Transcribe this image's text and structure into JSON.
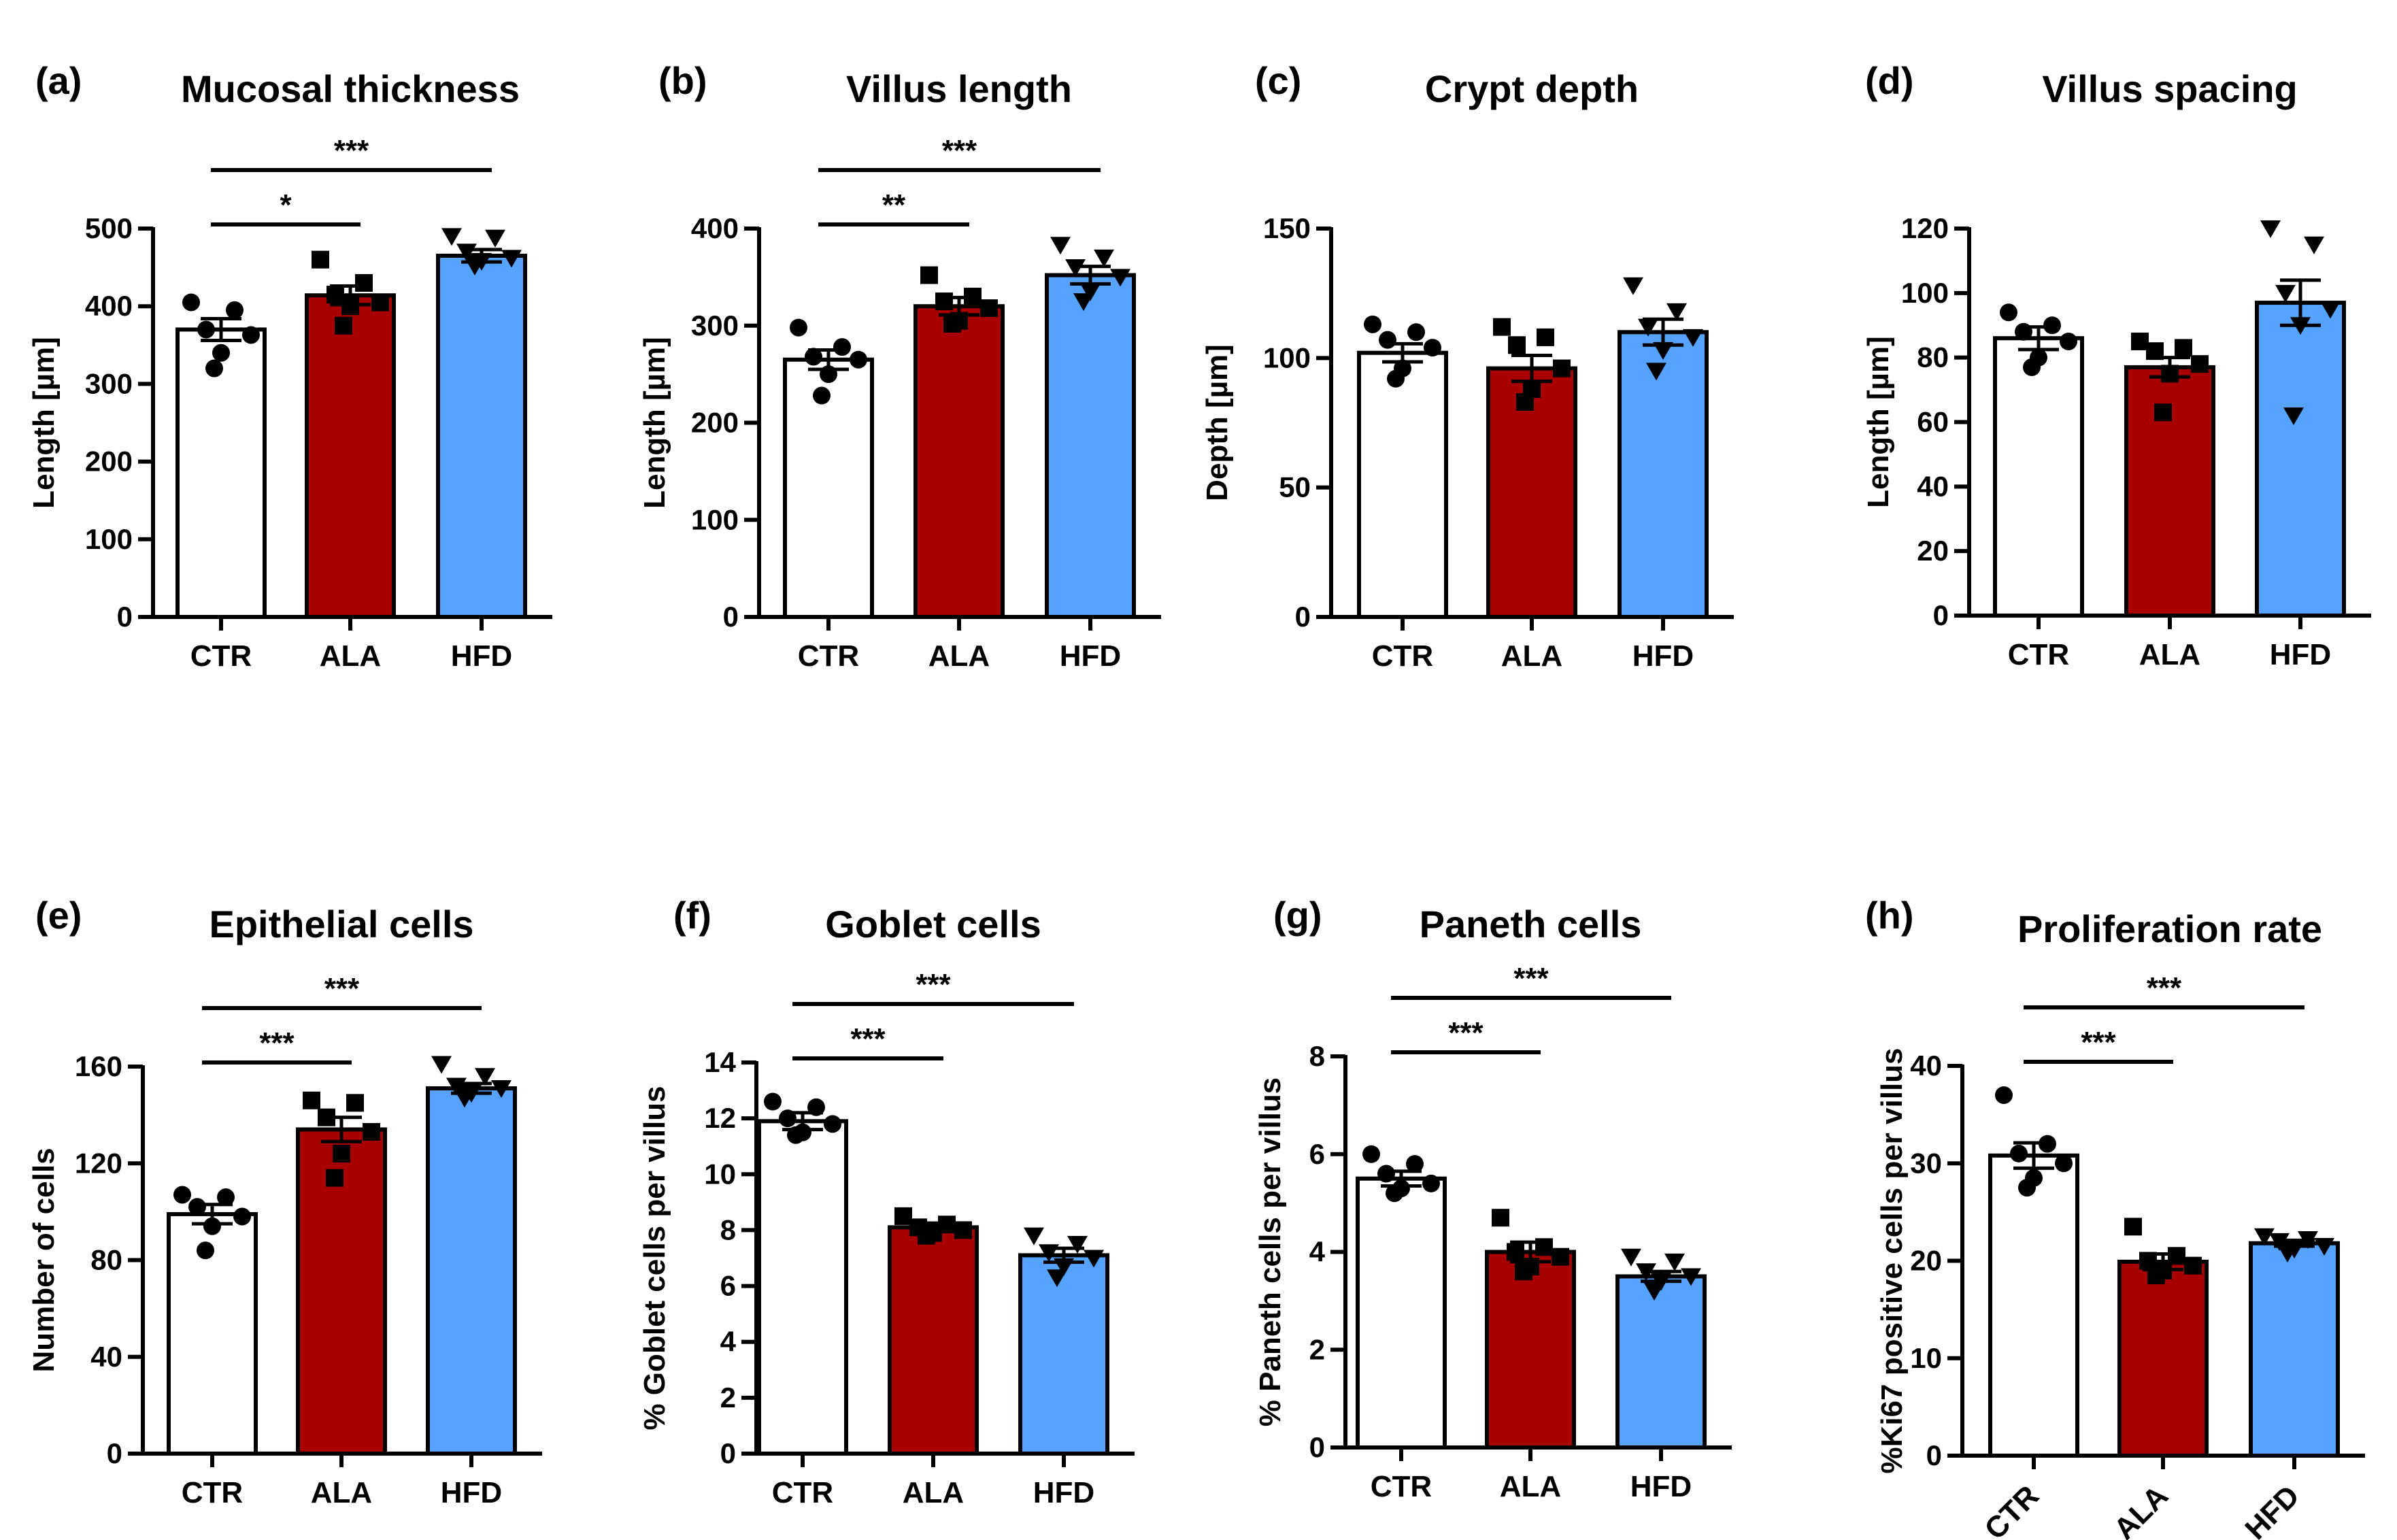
{
  "chart_data": [
    {
      "type": "bar",
      "panel": "(a)",
      "title": "Mucosal thickness",
      "ylabel": "Length [µm]",
      "ylim": [
        0,
        500
      ],
      "yticks": [
        0,
        100,
        200,
        300,
        400,
        500
      ],
      "categories": [
        "CTR",
        "ALA",
        "HFD"
      ],
      "values": [
        370,
        414,
        465
      ],
      "errors": [
        14,
        12,
        8
      ],
      "points": [
        [
          405,
          395,
          370,
          363,
          340,
          320
        ],
        [
          460,
          430,
          415,
          405,
          400,
          375
        ],
        [
          490,
          488,
          470,
          462,
          458,
          452
        ]
      ],
      "markers": [
        "circle",
        "square",
        "triangle"
      ],
      "significance": [
        {
          "from": 0,
          "to": 1,
          "label": "*"
        },
        {
          "from": 0,
          "to": 2,
          "label": "***"
        }
      ]
    },
    {
      "type": "bar",
      "panel": "(b)",
      "title": "Villus length",
      "ylabel": "Length [µm]",
      "ylim": [
        0,
        400
      ],
      "yticks": [
        0,
        100,
        200,
        300,
        400
      ],
      "categories": [
        "CTR",
        "ALA",
        "HFD"
      ],
      "values": [
        265,
        320,
        352
      ],
      "errors": [
        10,
        9,
        9
      ],
      "points": [
        [
          298,
          278,
          268,
          265,
          250,
          228
        ],
        [
          352,
          330,
          325,
          318,
          305,
          302
        ],
        [
          383,
          370,
          360,
          350,
          335,
          325
        ]
      ],
      "markers": [
        "circle",
        "square",
        "triangle"
      ],
      "significance": [
        {
          "from": 0,
          "to": 1,
          "label": "**"
        },
        {
          "from": 0,
          "to": 2,
          "label": "***"
        }
      ]
    },
    {
      "type": "bar",
      "panel": "(c)",
      "title": "Crypt depth",
      "ylabel": "Depth [µm]",
      "ylim": [
        0,
        150
      ],
      "yticks": [
        0,
        50,
        100,
        150
      ],
      "categories": [
        "CTR",
        "ALA",
        "HFD"
      ],
      "values": [
        102,
        96,
        110
      ],
      "errors": [
        3.5,
        5,
        5
      ],
      "points": [
        [
          113,
          110,
          107,
          104,
          96,
          92
        ],
        [
          112,
          108,
          105,
          96,
          88,
          83
        ],
        [
          128,
          118,
          112,
          108,
          103,
          95
        ]
      ],
      "markers": [
        "circle",
        "square",
        "triangle"
      ],
      "significance": []
    },
    {
      "type": "bar",
      "panel": "(d)",
      "title": "Villus spacing",
      "ylabel": "Length [µm]",
      "ylim": [
        0,
        120
      ],
      "yticks": [
        0,
        20,
        40,
        60,
        80,
        100,
        120
      ],
      "categories": [
        "CTR",
        "ALA",
        "HFD"
      ],
      "values": [
        86,
        77,
        97
      ],
      "errors": [
        3.5,
        3,
        7
      ],
      "points": [
        [
          94,
          90,
          88,
          85,
          80,
          77
        ],
        [
          85,
          83,
          82,
          78,
          75,
          63
        ],
        [
          120,
          115,
          100,
          95,
          90,
          62
        ]
      ],
      "markers": [
        "circle",
        "square",
        "triangle"
      ],
      "significance": []
    },
    {
      "type": "bar",
      "panel": "(e)",
      "title": "Epithelial cells",
      "ylabel": "Number of cells",
      "ylim": [
        0,
        160
      ],
      "yticks": [
        0,
        40,
        80,
        120,
        160
      ],
      "categories": [
        "CTR",
        "ALA",
        "HFD"
      ],
      "values": [
        99,
        134,
        151
      ],
      "errors": [
        4,
        5,
        2
      ],
      "points": [
        [
          107,
          106,
          102,
          98,
          94,
          84
        ],
        [
          146,
          145,
          139,
          133,
          124,
          114
        ],
        [
          161,
          156,
          152,
          151,
          149,
          147
        ]
      ],
      "markers": [
        "circle",
        "square",
        "triangle"
      ],
      "significance": [
        {
          "from": 0,
          "to": 1,
          "label": "***"
        },
        {
          "from": 0,
          "to": 2,
          "label": "***"
        }
      ]
    },
    {
      "type": "bar",
      "panel": "(f)",
      "title": "Goblet cells",
      "ylabel": "% Goblet cells per villus",
      "ylim": [
        0,
        14
      ],
      "yticks": [
        0,
        2,
        4,
        6,
        8,
        10,
        12,
        14
      ],
      "categories": [
        "CTR",
        "ALA",
        "HFD"
      ],
      "values": [
        11.9,
        8.1,
        7.1
      ],
      "errors": [
        0.3,
        0.15,
        0.25
      ],
      "points": [
        [
          12.6,
          12.4,
          12.0,
          11.8,
          11.5,
          11.4
        ],
        [
          8.5,
          8.2,
          8.1,
          8.0,
          7.9,
          7.8
        ],
        [
          7.8,
          7.5,
          7.2,
          7.0,
          6.7,
          6.3
        ]
      ],
      "markers": [
        "circle",
        "square",
        "triangle"
      ],
      "significance": [
        {
          "from": 0,
          "to": 1,
          "label": "***"
        },
        {
          "from": 0,
          "to": 2,
          "label": "***"
        }
      ]
    },
    {
      "type": "bar",
      "panel": "(g)",
      "title": "Paneth cells",
      "ylabel": "% Paneth cells per villus",
      "ylim": [
        0,
        8
      ],
      "yticks": [
        0,
        2,
        4,
        6,
        8
      ],
      "categories": [
        "CTR",
        "ALA",
        "HFD"
      ],
      "values": [
        5.5,
        4.0,
        3.5
      ],
      "errors": [
        0.15,
        0.2,
        0.1
      ],
      "points": [
        [
          6.0,
          5.8,
          5.6,
          5.4,
          5.3,
          5.2
        ],
        [
          4.7,
          4.1,
          4.0,
          3.9,
          3.7,
          3.6
        ],
        [
          3.9,
          3.8,
          3.6,
          3.5,
          3.4,
          3.2
        ]
      ],
      "markers": [
        "circle",
        "square",
        "triangle"
      ],
      "significance": [
        {
          "from": 0,
          "to": 1,
          "label": "***"
        },
        {
          "from": 0,
          "to": 2,
          "label": "***"
        }
      ]
    },
    {
      "type": "bar",
      "panel": "(h)",
      "title": "Proliferation rate",
      "ylabel": "%Ki67 positive cells per villus",
      "ylim": [
        0,
        40
      ],
      "yticks": [
        0,
        10,
        20,
        30,
        40
      ],
      "categories": [
        "CTR",
        "ALA",
        "HFD"
      ],
      "values": [
        30.8,
        19.9,
        21.8
      ],
      "errors": [
        1.3,
        0.8,
        0.3
      ],
      "points": [
        [
          37,
          32,
          31,
          30,
          28.5,
          27.5
        ],
        [
          23.5,
          20.5,
          20,
          19.5,
          19,
          18.5
        ],
        [
          22.5,
          22.2,
          22,
          21.5,
          21.2,
          20.8
        ]
      ],
      "markers": [
        "circle",
        "square",
        "triangle"
      ],
      "significance": [
        {
          "from": 0,
          "to": 1,
          "label": "***"
        },
        {
          "from": 0,
          "to": 2,
          "label": "***"
        }
      ]
    }
  ],
  "colors": {
    "CTR": "#ffffff",
    "ALA": "#a80000",
    "HFD": "#55a3ff",
    "ink": "#000000"
  }
}
